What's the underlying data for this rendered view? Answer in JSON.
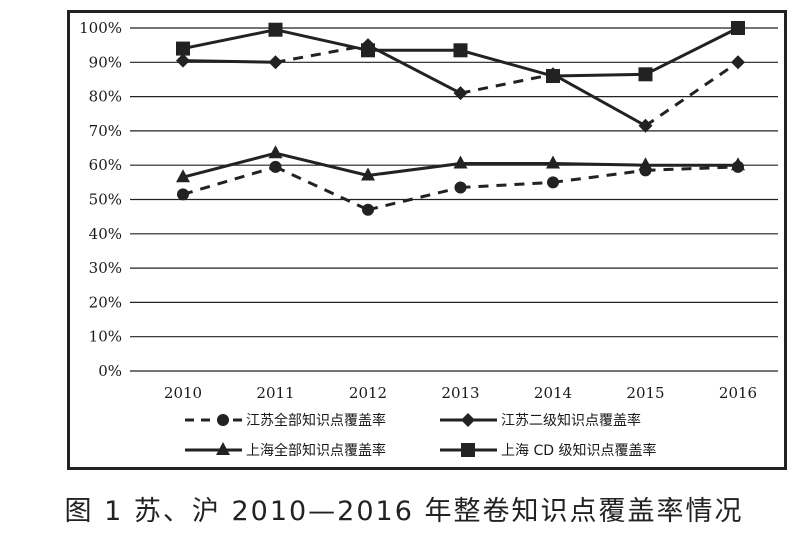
{
  "chart_data": {
    "type": "line",
    "title": "",
    "xlabel": "",
    "ylabel": "",
    "categories": [
      "2010",
      "2011",
      "2012",
      "2013",
      "2014",
      "2015",
      "2016"
    ],
    "ylim": [
      0,
      100
    ],
    "yticks": [
      "0%",
      "10%",
      "20%",
      "30%",
      "40%",
      "50%",
      "60%",
      "70%",
      "80%",
      "90%",
      "100%"
    ],
    "grid": true,
    "legend_position": "bottom",
    "series": [
      {
        "name": "江苏全部知识点覆盖率",
        "marker": "circle",
        "line": "dashed",
        "values": [
          51.5,
          59.5,
          47,
          53.5,
          55,
          58.5,
          59.5
        ]
      },
      {
        "name": "江苏二级知识点覆盖率",
        "marker": "diamond",
        "line": "mixed",
        "values": [
          90.5,
          90,
          95,
          81,
          86.5,
          71.5,
          90
        ]
      },
      {
        "name": "上海全部知识点覆盖率",
        "marker": "triangle",
        "line": "solid",
        "values": [
          56.5,
          63.5,
          57,
          60.5,
          60.5,
          60,
          60
        ]
      },
      {
        "name": "上海CD级知识点覆盖率",
        "marker": "square",
        "line": "solid",
        "values": [
          94,
          99.5,
          93.5,
          93.5,
          86,
          86.5,
          100
        ]
      }
    ]
  },
  "legend": {
    "s1": "江苏全部知识点覆盖率",
    "s2": "江苏二级知识点覆盖率",
    "s3": "上海全部知识点覆盖率",
    "s4": "上海 CD 级知识点覆盖率"
  },
  "caption": "图 1  苏、沪 2010—2016 年整卷知识点覆盖率情况",
  "colors": {
    "line": "#222222",
    "grid": "#222222",
    "background": "#ffffff"
  }
}
